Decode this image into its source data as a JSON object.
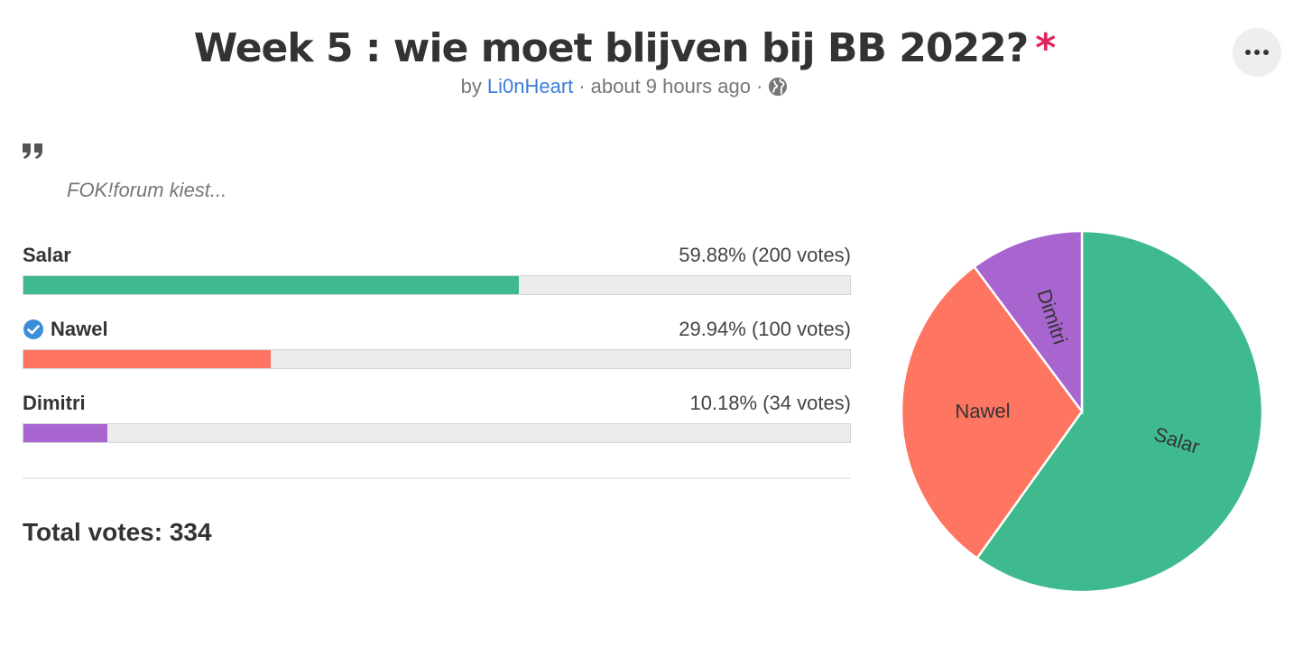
{
  "poll": {
    "title": "Week 5 : wie moet blijven bij BB 2022?",
    "required_marker": "*",
    "by_label": "by",
    "author": "Li0nHeart",
    "separator": "·",
    "time_ago": "about 9 hours ago",
    "visibility_icon": "globe-icon",
    "menu_icon": "more-horizontal-icon",
    "quote_icon": "quote-icon",
    "description": "FOK!forum kiest..."
  },
  "options": [
    {
      "name": "Salar",
      "stats": "59.88% (200 votes)",
      "percent": 59.88,
      "votes": 200,
      "color": "#3fba8f",
      "voted": false
    },
    {
      "name": "Nawel",
      "stats": "29.94% (100 votes)",
      "percent": 29.94,
      "votes": 100,
      "color": "#fe7562",
      "voted": true
    },
    {
      "name": "Dimitri",
      "stats": "10.18% (34 votes)",
      "percent": 10.18,
      "votes": 34,
      "color": "#a865d0",
      "voted": false
    }
  ],
  "total_votes_label": "Total votes: 334",
  "chart_data": {
    "type": "pie",
    "categories": [
      "Salar",
      "Nawel",
      "Dimitri"
    ],
    "values": [
      200,
      100,
      34
    ],
    "colors": [
      "#3fba8f",
      "#fe7562",
      "#a865d0"
    ],
    "start_angle": "12 o'clock, clockwise"
  },
  "colors": {
    "accent_link": "#3b7dd8",
    "required": "#e0245e",
    "voted_check": "#3b8fd9"
  }
}
